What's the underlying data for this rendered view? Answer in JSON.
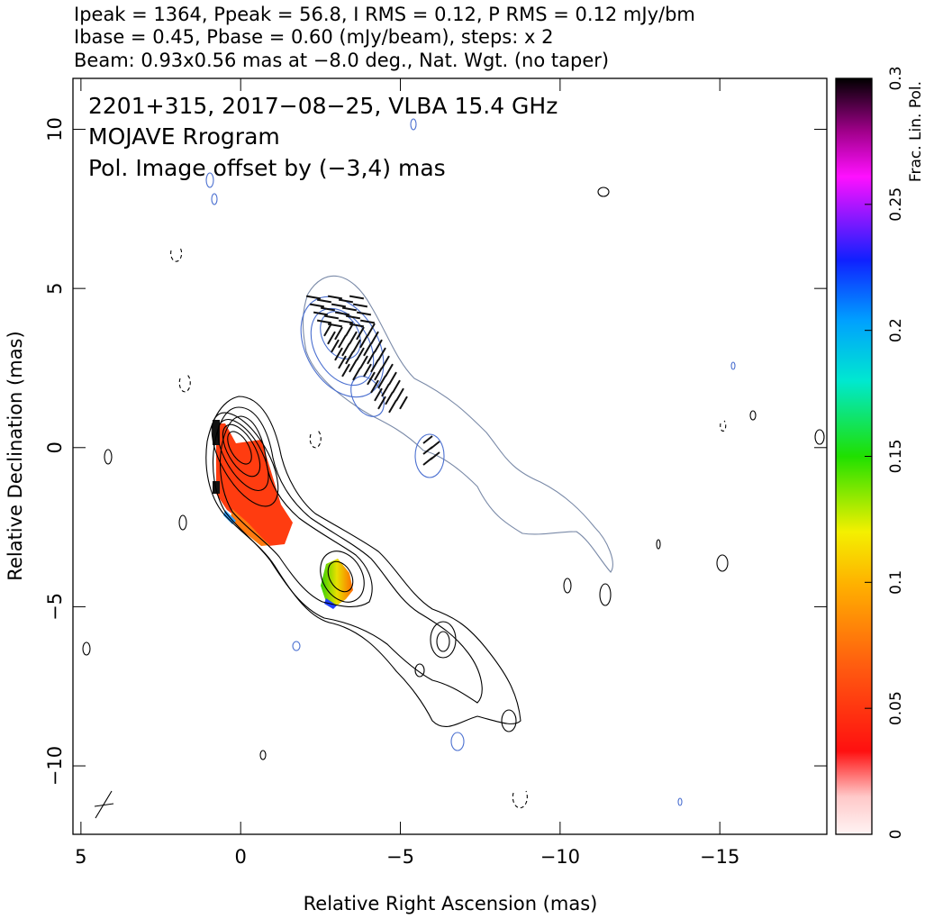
{
  "header": [
    "Ipeak = 1364, Ppeak = 56.8, I RMS = 0.12, P RMS = 0.12 mJy/bm",
    "Ibase = 0.45, Pbase = 0.60 (mJy/beam), steps: x 2",
    "Beam: 0.93x0.56 mas at −8.0 deg., Nat. Wgt. (no taper)"
  ],
  "chart_data": {
    "type": "image",
    "annotations": [
      "2201+315, 2017−08−25, VLBA 15.4 GHz",
      "MOJAVE Rrogram",
      "Pol. Image offset by (−3,4) mas"
    ],
    "annotation_colors": [
      "#000000",
      "#000000",
      "#4a6fd0"
    ],
    "x_label": "Relative Right Ascension (mas)",
    "y_label": "Relative Declination (mas)",
    "xlim": [
      5.25,
      -18.35
    ],
    "xticks": [
      5,
      0,
      {
        "value": -5,
        "label": "−5"
      },
      {
        "value": -10,
        "label": "−10"
      },
      {
        "value": -15,
        "label": "−15"
      }
    ],
    "ylim": [
      -12.15,
      11.6
    ],
    "yticks": [
      10,
      5,
      0,
      {
        "value": -5,
        "label": "−5"
      },
      {
        "value": -10,
        "label": "−10"
      }
    ],
    "colorbar": {
      "label": "Frac. Lin. Pol.",
      "lim": [
        0,
        0.3
      ],
      "ticks": [
        0,
        0.05,
        0.1,
        0.15,
        0.2,
        0.25,
        0.3
      ]
    }
  }
}
